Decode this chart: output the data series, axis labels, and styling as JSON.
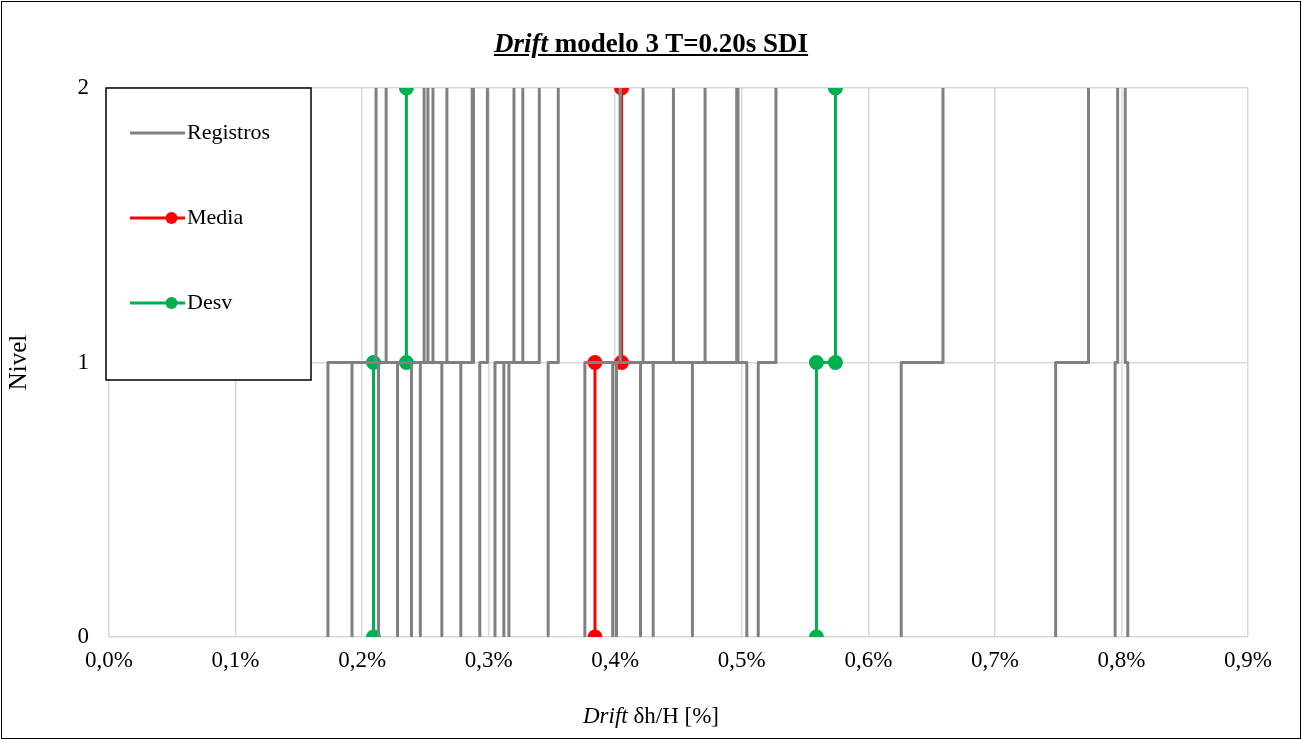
{
  "chart_data": {
    "type": "line",
    "title": "Drift modelo 3 T=0.20s SDI",
    "xlabel": "Drift δh/H [%]",
    "ylabel": "Nivel",
    "xlim": [
      0,
      0.9
    ],
    "xticks": [
      {
        "value": 0,
        "label": "0,0%"
      },
      {
        "value": 0.1,
        "label": "0,1%"
      },
      {
        "value": 0.2,
        "label": "0,2%"
      },
      {
        "value": 0.3,
        "label": "0,3%"
      },
      {
        "value": 0.4,
        "label": "0,4%"
      },
      {
        "value": 0.5,
        "label": "0,5%"
      },
      {
        "value": 0.6,
        "label": "0,6%"
      },
      {
        "value": 0.7,
        "label": "0,7%"
      },
      {
        "value": 0.8,
        "label": "0,8%"
      },
      {
        "value": 0.9,
        "label": "0,9%"
      }
    ],
    "ylim": [
      0,
      2
    ],
    "yticks": [
      0,
      1,
      2
    ],
    "grid": true,
    "legend": "top left",
    "series": [
      {
        "name": "Registros",
        "color": "#808080",
        "marker": "none",
        "x": [
          0.173,
          0.173,
          0.211,
          0.211
        ],
        "values": [
          0,
          1,
          1,
          2
        ]
      },
      {
        "color": "#808080",
        "marker": "none",
        "x": [
          0.192,
          0.192,
          0.219,
          0.219
        ],
        "values": [
          0,
          1,
          1,
          2
        ]
      },
      {
        "color": "#808080",
        "marker": "none",
        "x": [
          0.213,
          0.213,
          0.249,
          0.249
        ],
        "values": [
          0,
          1,
          1,
          2
        ]
      },
      {
        "color": "#808080",
        "marker": "none",
        "x": [
          0.228,
          0.228,
          0.252,
          0.252
        ],
        "values": [
          0,
          1,
          1,
          2
        ]
      },
      {
        "color": "#808080",
        "marker": "none",
        "x": [
          0.239,
          0.239,
          0.256,
          0.256
        ],
        "values": [
          0,
          1,
          1,
          2
        ]
      },
      {
        "color": "#808080",
        "marker": "none",
        "x": [
          0.246,
          0.246,
          0.267,
          0.267
        ],
        "values": [
          0,
          1,
          1,
          2
        ]
      },
      {
        "color": "#808080",
        "marker": "none",
        "x": [
          0.263,
          0.263,
          0.287,
          0.287
        ],
        "values": [
          0,
          1,
          1,
          2
        ]
      },
      {
        "color": "#808080",
        "marker": "none",
        "x": [
          0.278,
          0.278,
          0.288,
          0.288
        ],
        "values": [
          0,
          1,
          1,
          2
        ]
      },
      {
        "color": "#808080",
        "marker": "none",
        "x": [
          0.293,
          0.293,
          0.299,
          0.299
        ],
        "values": [
          0,
          1,
          1,
          2
        ]
      },
      {
        "color": "#808080",
        "marker": "none",
        "x": [
          0.305,
          0.305,
          0.32,
          0.32
        ],
        "values": [
          0,
          1,
          1,
          2
        ]
      },
      {
        "color": "#808080",
        "marker": "none",
        "x": [
          0.312,
          0.312,
          0.327,
          0.327
        ],
        "values": [
          0,
          1,
          1,
          2
        ]
      },
      {
        "color": "#808080",
        "marker": "none",
        "x": [
          0.316,
          0.316,
          0.34,
          0.34
        ],
        "values": [
          0,
          1,
          1,
          2
        ]
      },
      {
        "color": "#808080",
        "marker": "none",
        "x": [
          0.347,
          0.347,
          0.355,
          0.355
        ],
        "values": [
          0,
          1,
          1,
          2
        ]
      },
      {
        "color": "#808080",
        "marker": "none",
        "x": [
          0.376,
          0.376,
          0.404,
          0.404
        ],
        "values": [
          0,
          1,
          1,
          2
        ]
      },
      {
        "color": "#808080",
        "marker": "none",
        "x": [
          0.398,
          0.398,
          0.404,
          0.404
        ],
        "values": [
          0,
          1,
          1,
          2
        ]
      },
      {
        "color": "#808080",
        "marker": "none",
        "x": [
          0.401,
          0.401,
          0.422,
          0.422
        ],
        "values": [
          0,
          1,
          1,
          2
        ]
      },
      {
        "color": "#808080",
        "marker": "none",
        "x": [
          0.42,
          0.42,
          0.446,
          0.446
        ],
        "values": [
          0,
          1,
          1,
          2
        ]
      },
      {
        "color": "#808080",
        "marker": "none",
        "x": [
          0.43,
          0.43,
          0.471,
          0.471
        ],
        "values": [
          0,
          1,
          1,
          2
        ]
      },
      {
        "color": "#808080",
        "marker": "none",
        "x": [
          0.461,
          0.461,
          0.496,
          0.496
        ],
        "values": [
          0,
          1,
          1,
          2
        ]
      },
      {
        "color": "#808080",
        "marker": "none",
        "x": [
          0.504,
          0.504,
          0.497,
          0.497
        ],
        "values": [
          0,
          1,
          1,
          2
        ]
      },
      {
        "color": "#808080",
        "marker": "none",
        "x": [
          0.513,
          0.513,
          0.527,
          0.527
        ],
        "values": [
          0,
          1,
          1,
          2
        ]
      },
      {
        "color": "#808080",
        "marker": "none",
        "x": [
          0.626,
          0.626,
          0.659,
          0.659
        ],
        "values": [
          0,
          1,
          1,
          2
        ]
      },
      {
        "color": "#808080",
        "marker": "none",
        "x": [
          0.748,
          0.748,
          0.774,
          0.774
        ],
        "values": [
          0,
          1,
          1,
          2
        ]
      },
      {
        "color": "#808080",
        "marker": "none",
        "x": [
          0.795,
          0.795,
          0.797,
          0.797
        ],
        "values": [
          0,
          1,
          1,
          2
        ]
      },
      {
        "color": "#808080",
        "marker": "none",
        "x": [
          0.805,
          0.805,
          0.803,
          0.803
        ],
        "values": [
          0,
          1,
          1,
          2
        ]
      },
      {
        "name": "Media",
        "color": "#ff0000",
        "marker": "circle",
        "x": [
          0.384,
          0.384,
          0.405,
          0.405
        ],
        "values": [
          0,
          1,
          1,
          2
        ]
      },
      {
        "name": "Desv",
        "color": "#00b050",
        "marker": "circle",
        "x": [
          0.209,
          0.209,
          0.235,
          0.235
        ],
        "values": [
          0,
          1,
          1,
          2
        ]
      },
      {
        "color": "#00b050",
        "marker": "circle",
        "x": [
          0.559,
          0.559,
          0.574,
          0.574
        ],
        "values": [
          0,
          1,
          1,
          2
        ]
      }
    ]
  }
}
